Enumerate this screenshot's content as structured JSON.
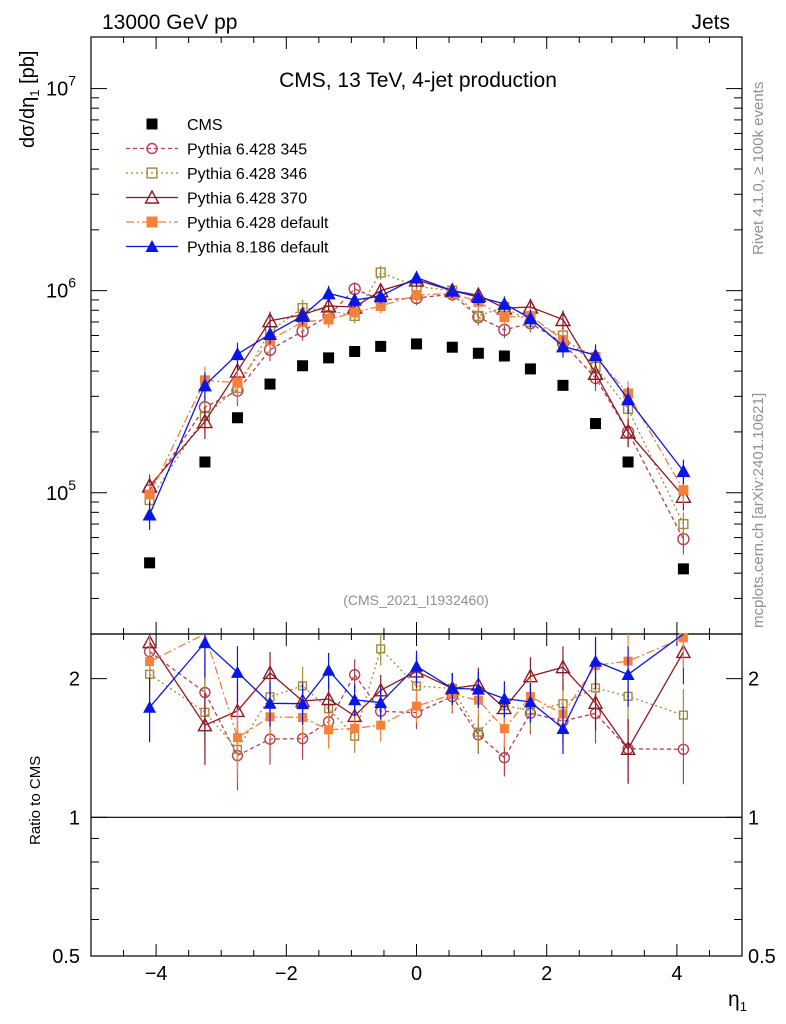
{
  "header": {
    "left": "13000 GeV pp",
    "right": "Jets"
  },
  "side": {
    "rivet": "Rivet 4.1.0, ≥ 100k events",
    "mcplots": "mcplots.cern.ch [arXiv:2401.10621]"
  },
  "chart_data": {
    "type": "scatter",
    "title": "CMS, 13 TeV, 4-jet production",
    "analysis_tag": "(CMS_2021_I1932460)",
    "xlabel": "η",
    "xlabel_sub": "1",
    "ylabel": "dσ/dη",
    "ylabel_sub": "1",
    "ylabel_unit": " [pb]",
    "ratio_ylabel": "Ratio to CMS",
    "xlim": [
      -5,
      5
    ],
    "ylim": [
      20000,
      18000000
    ],
    "yscale": "log",
    "ratio_ylim": [
      0.5,
      2.5
    ],
    "ratio_yscale": "log",
    "x_ticks": [
      -4,
      -2,
      0,
      2,
      4
    ],
    "x_tick_labels": [
      "−4",
      "−2",
      "0",
      "2",
      "4"
    ],
    "y_ticks": [
      {
        "value": 100000,
        "base": "10",
        "exp": "5"
      },
      {
        "value": 1000000,
        "base": "10",
        "exp": "6"
      },
      {
        "value": 10000000,
        "base": "10",
        "exp": "7"
      }
    ],
    "ratio_ticks": [
      {
        "value": 0.5,
        "label": "0.5"
      },
      {
        "value": 1,
        "label": "1"
      },
      {
        "value": 2,
        "label": "2"
      }
    ],
    "x": [
      -4.1,
      -3.25,
      -2.75,
      -2.25,
      -1.75,
      -1.35,
      -0.95,
      -0.55,
      0.0,
      0.55,
      0.95,
      1.35,
      1.75,
      2.25,
      2.75,
      3.25,
      4.1
    ],
    "series": [
      {
        "name": "CMS",
        "color": "#000000",
        "marker": "square-filled",
        "dash": "none",
        "values": [
          45000,
          142000,
          235000,
          345000,
          425000,
          465000,
          500000,
          530000,
          545000,
          525000,
          490000,
          475000,
          410000,
          340000,
          220000,
          142000,
          42000
        ]
      },
      {
        "name": "Pythia 6.428 345",
        "color": "#b5404f",
        "marker": "circle-open",
        "dash": "4,3",
        "values": [
          103000,
          265000,
          320000,
          510000,
          630000,
          750000,
          1020000,
          900000,
          920000,
          960000,
          740000,
          640000,
          690000,
          550000,
          370000,
          200000,
          59000
        ],
        "rel_err": [
          0.14,
          0.18,
          0.16,
          0.12,
          0.1,
          0.09,
          0.08,
          0.08,
          0.08,
          0.08,
          0.09,
          0.09,
          0.1,
          0.11,
          0.14,
          0.16,
          0.16
        ]
      },
      {
        "name": "Pythia 6.428 346",
        "color": "#a08a3c",
        "marker": "square-open",
        "dash": "2,3",
        "values": [
          92000,
          240000,
          330000,
          630000,
          820000,
          800000,
          750000,
          1230000,
          1050000,
          1000000,
          750000,
          830000,
          700000,
          600000,
          420000,
          260000,
          70000
        ],
        "rel_err": [
          0.13,
          0.17,
          0.15,
          0.11,
          0.1,
          0.09,
          0.08,
          0.08,
          0.08,
          0.08,
          0.09,
          0.09,
          0.1,
          0.11,
          0.13,
          0.15,
          0.14
        ]
      },
      {
        "name": "Pythia 6.428 370",
        "color": "#8c1a24",
        "marker": "triangle-open",
        "dash": "none",
        "values": [
          108000,
          225000,
          400000,
          710000,
          760000,
          840000,
          830000,
          1000000,
          1130000,
          1000000,
          950000,
          820000,
          830000,
          720000,
          390000,
          200000,
          96000
        ],
        "rel_err": [
          0.14,
          0.18,
          0.15,
          0.11,
          0.1,
          0.09,
          0.08,
          0.08,
          0.08,
          0.08,
          0.09,
          0.09,
          0.1,
          0.11,
          0.13,
          0.16,
          0.15
        ]
      },
      {
        "name": "Pythia 6.428 default",
        "color": "#f5813a",
        "marker": "square-filled",
        "dash": "8,3,2,3",
        "values": [
          98000,
          360000,
          350000,
          570000,
          700000,
          720000,
          780000,
          840000,
          950000,
          970000,
          880000,
          740000,
          750000,
          570000,
          470000,
          310000,
          103000
        ],
        "rel_err": [
          0.14,
          0.17,
          0.15,
          0.11,
          0.1,
          0.09,
          0.08,
          0.08,
          0.08,
          0.08,
          0.09,
          0.09,
          0.1,
          0.11,
          0.13,
          0.15,
          0.14
        ]
      },
      {
        "name": "Pythia 8.186 default",
        "color": "#0a16e6",
        "marker": "triangle-filled",
        "dash": "none",
        "values": [
          78000,
          340000,
          485000,
          610000,
          750000,
          970000,
          900000,
          940000,
          1160000,
          1000000,
          930000,
          860000,
          730000,
          530000,
          480000,
          290000,
          128000
        ],
        "rel_err": [
          0.16,
          0.16,
          0.14,
          0.11,
          0.1,
          0.09,
          0.08,
          0.08,
          0.08,
          0.08,
          0.09,
          0.09,
          0.1,
          0.12,
          0.13,
          0.15,
          0.14
        ]
      }
    ]
  }
}
